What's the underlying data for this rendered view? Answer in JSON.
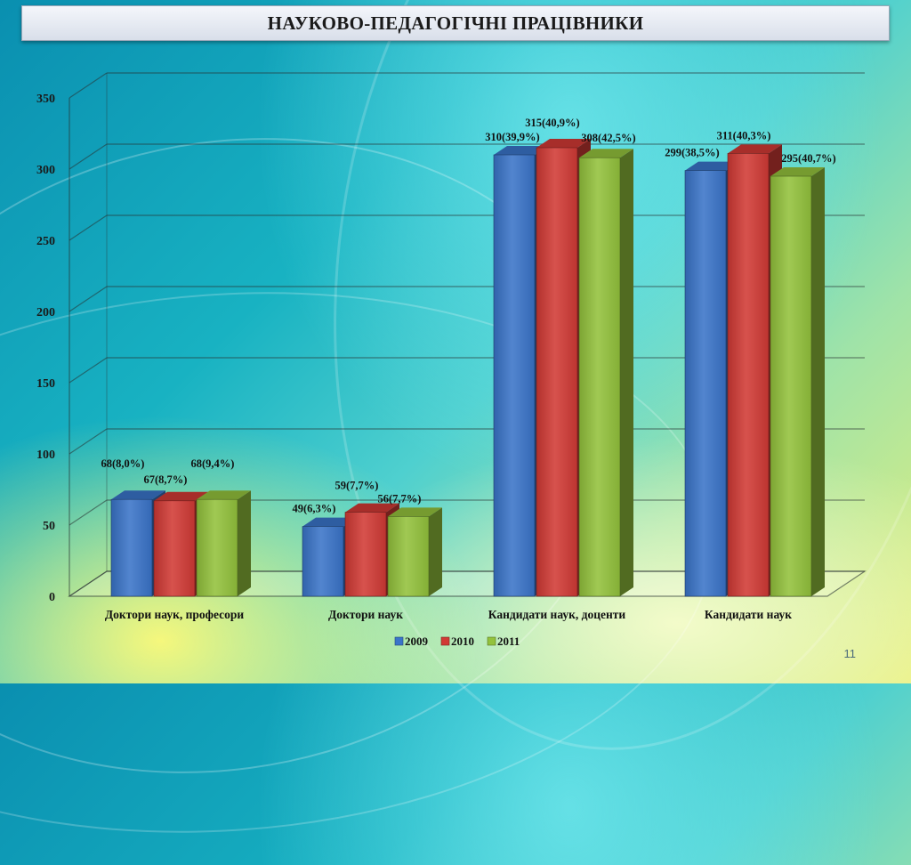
{
  "title": "НАУКОВО-ПЕДАГОГІЧНІ ПРАЦІВНИКИ",
  "page_number": "11",
  "colors": {
    "series_2009": "#3a74c9",
    "series_2010": "#d13a35",
    "series_2011": "#93c23c"
  },
  "chart_data": {
    "type": "bar",
    "categories": [
      "Доктори наук, професори",
      "Доктори наук",
      "Кандидати наук, доценти",
      "Кандидати наук"
    ],
    "series": [
      {
        "name": "2009",
        "values": [
          68,
          49,
          310,
          299
        ],
        "labels": [
          "68(8,0%)",
          "49(6,3%)",
          "310(39,9%)",
          "299(38,5%)"
        ]
      },
      {
        "name": "2010",
        "values": [
          67,
          59,
          315,
          311
        ],
        "labels": [
          "67(8,7%)",
          "59(7,7%)",
          "315(40,9%)",
          "311(40,3%)"
        ]
      },
      {
        "name": "2011",
        "values": [
          68,
          56,
          308,
          295
        ],
        "labels": [
          "68(9,4%)",
          "56(7,7%)",
          "308(42,5%)",
          "295(40,7%)"
        ]
      }
    ],
    "y_ticks": [
      "0",
      "50",
      "100",
      "150",
      "200",
      "250",
      "300",
      "350"
    ],
    "ylim": [
      0,
      350
    ],
    "grid": true,
    "legend": "bottom",
    "style": "3d-clustered-column"
  }
}
